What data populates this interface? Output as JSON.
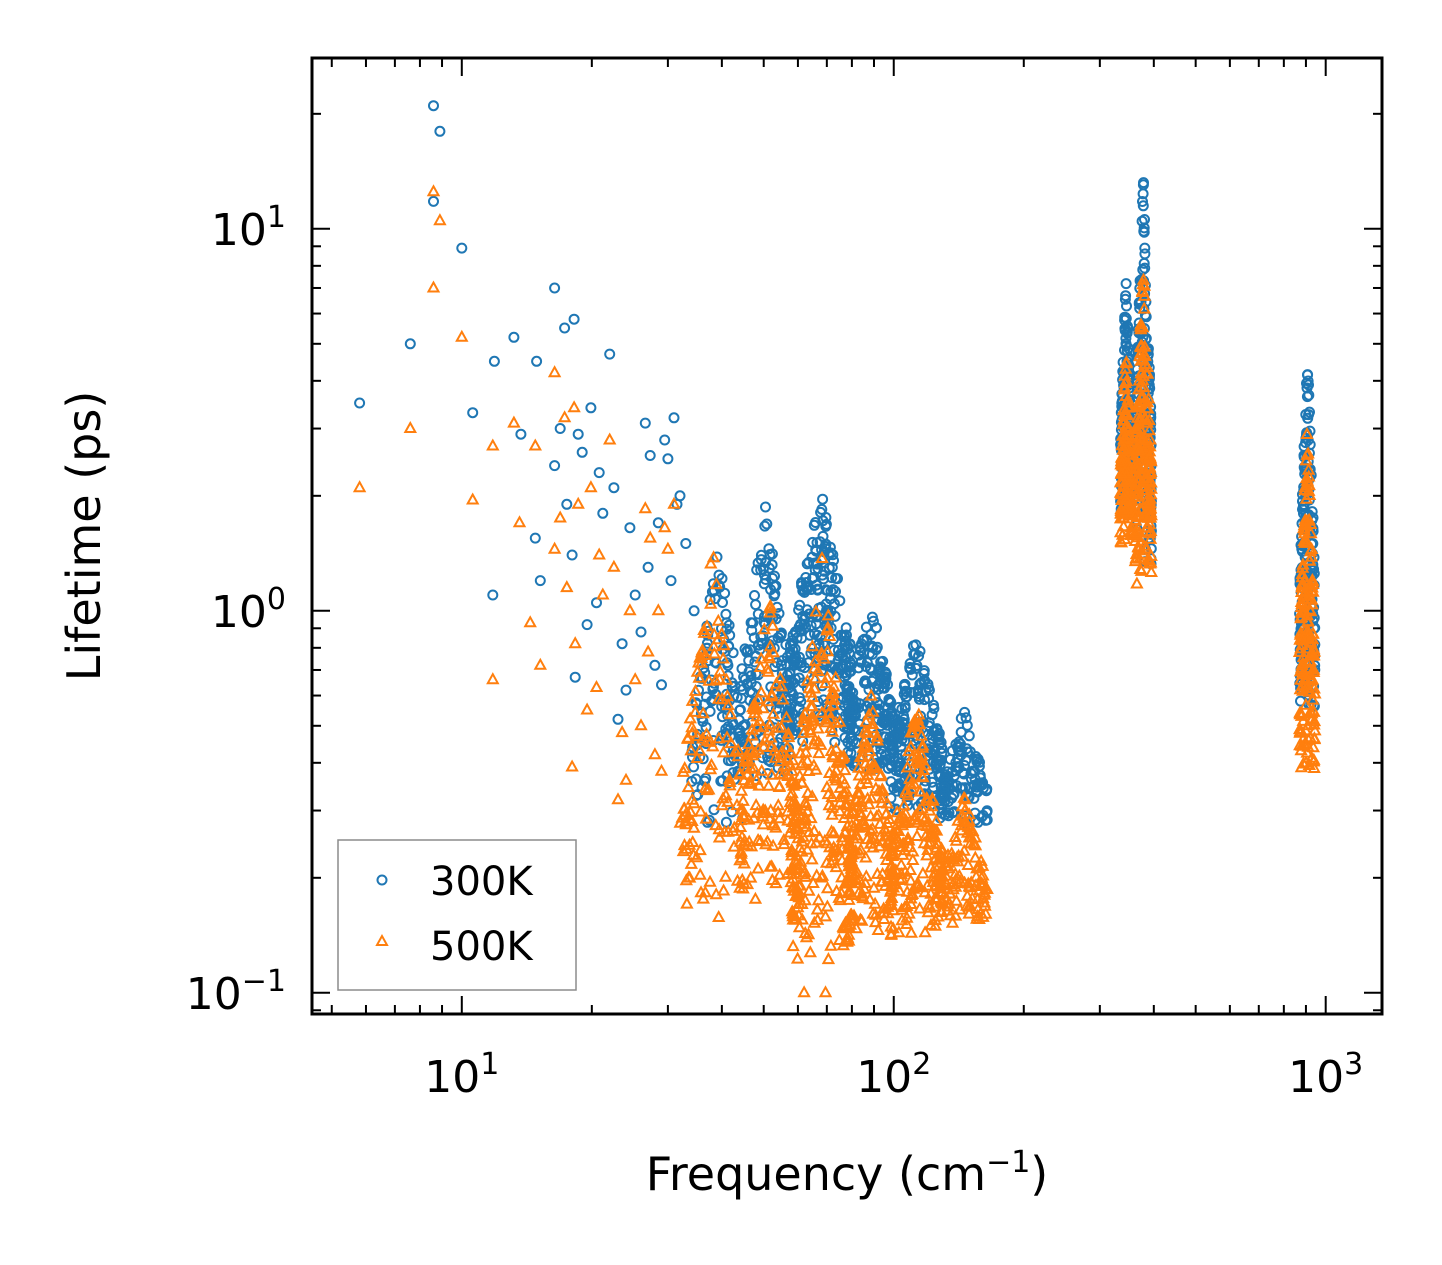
{
  "chart_data": {
    "type": "scatter",
    "title": "",
    "xlabel": "Frequency (cm",
    "xlabel_sup": "−1",
    "xlabel_close": ")",
    "ylabel": "Lifetime (ps)",
    "xscale": "log",
    "yscale": "log",
    "xlim": [
      4.5,
      1350
    ],
    "ylim": [
      0.088,
      28
    ],
    "x_ticks": [
      {
        "value": 10,
        "base": "10",
        "exp": "1"
      },
      {
        "value": 100,
        "base": "10",
        "exp": "2"
      },
      {
        "value": 1000,
        "base": "10",
        "exp": "3"
      }
    ],
    "y_ticks": [
      {
        "value": 0.1,
        "base": "10",
        "exp": "−1"
      },
      {
        "value": 1,
        "base": "10",
        "exp": "0"
      },
      {
        "value": 10,
        "base": "10",
        "exp": "1"
      }
    ],
    "legend_position": "bottom-left",
    "series": [
      {
        "name": "300K",
        "marker": "circle",
        "color": "#1f77b4",
        "points": [
          [
            5.8,
            3.5
          ],
          [
            7.6,
            5.0
          ],
          [
            8.6,
            21.0
          ],
          [
            8.6,
            11.8
          ],
          [
            8.9,
            18.0
          ],
          [
            10.0,
            8.9
          ],
          [
            10.6,
            3.3
          ],
          [
            11.8,
            1.1
          ],
          [
            11.9,
            4.5
          ],
          [
            13.2,
            5.2
          ],
          [
            13.7,
            2.9
          ],
          [
            14.8,
            1.55
          ],
          [
            14.9,
            4.5
          ],
          [
            15.2,
            1.2
          ],
          [
            16.4,
            7.0
          ],
          [
            16.4,
            2.4
          ],
          [
            16.9,
            3.0
          ],
          [
            17.3,
            5.5
          ],
          [
            17.5,
            1.9
          ],
          [
            18.0,
            1.4
          ],
          [
            18.2,
            5.8
          ],
          [
            18.3,
            0.67
          ],
          [
            18.6,
            2.9
          ],
          [
            19.0,
            2.6
          ],
          [
            19.5,
            0.92
          ],
          [
            19.9,
            3.4
          ],
          [
            20.5,
            1.05
          ],
          [
            20.8,
            2.3
          ],
          [
            21.2,
            1.8
          ],
          [
            22.0,
            4.7
          ],
          [
            22.5,
            2.1
          ],
          [
            23.0,
            0.52
          ],
          [
            23.5,
            0.82
          ],
          [
            24.0,
            0.62
          ],
          [
            24.5,
            1.65
          ],
          [
            25.2,
            1.1
          ],
          [
            26.0,
            0.88
          ],
          [
            26.6,
            3.1
          ],
          [
            27.0,
            1.3
          ],
          [
            27.3,
            2.55
          ],
          [
            28.0,
            0.72
          ],
          [
            28.5,
            1.7
          ],
          [
            29.0,
            0.64
          ],
          [
            29.5,
            2.8
          ],
          [
            30.0,
            2.5
          ],
          [
            30.5,
            1.2
          ],
          [
            31.0,
            3.2
          ],
          [
            31.5,
            1.9
          ],
          [
            32.0,
            2.0
          ],
          [
            33.0,
            1.5
          ],
          [
            34.5,
            1.0
          ]
        ],
        "clusters": [
          {
            "x_min": 34,
            "x_max": 45,
            "y_min": 0.27,
            "y_max": 1.5,
            "n": 130
          },
          {
            "x_min": 44,
            "x_max": 58,
            "y_min": 0.36,
            "y_max": 1.9,
            "n": 170
          },
          {
            "x_min": 57,
            "x_max": 80,
            "y_min": 0.45,
            "y_max": 2.2,
            "n": 260
          },
          {
            "x_min": 78,
            "x_max": 100,
            "y_min": 0.38,
            "y_max": 1.1,
            "n": 170
          },
          {
            "x_min": 98,
            "x_max": 130,
            "y_min": 0.3,
            "y_max": 0.9,
            "n": 200
          },
          {
            "x_min": 128,
            "x_max": 165,
            "y_min": 0.27,
            "y_max": 0.55,
            "n": 120
          },
          {
            "x_min": 335,
            "x_max": 355,
            "y_min": 1.8,
            "y_max": 7.5,
            "n": 140
          },
          {
            "x_min": 362,
            "x_max": 395,
            "y_min": 1.3,
            "y_max": 14.0,
            "n": 200
          },
          {
            "x_min": 870,
            "x_max": 945,
            "y_min": 0.55,
            "y_max": 5.0,
            "n": 180
          }
        ]
      },
      {
        "name": "500K",
        "marker": "triangle",
        "color": "#ff7f0e",
        "points": [
          [
            5.8,
            2.1
          ],
          [
            7.6,
            3.0
          ],
          [
            8.6,
            12.5
          ],
          [
            8.6,
            7.0
          ],
          [
            8.9,
            10.5
          ],
          [
            10.0,
            5.2
          ],
          [
            10.6,
            1.95
          ],
          [
            11.8,
            0.66
          ],
          [
            11.8,
            2.7
          ],
          [
            13.2,
            3.1
          ],
          [
            13.6,
            1.7
          ],
          [
            14.4,
            0.93
          ],
          [
            14.8,
            2.7
          ],
          [
            15.2,
            0.72
          ],
          [
            16.4,
            4.2
          ],
          [
            16.4,
            1.45
          ],
          [
            16.9,
            1.75
          ],
          [
            17.3,
            3.2
          ],
          [
            17.5,
            1.15
          ],
          [
            18.0,
            0.39
          ],
          [
            18.2,
            3.4
          ],
          [
            18.3,
            0.82
          ],
          [
            18.6,
            1.9
          ],
          [
            19.5,
            0.55
          ],
          [
            19.9,
            2.1
          ],
          [
            20.5,
            0.63
          ],
          [
            20.8,
            1.4
          ],
          [
            21.2,
            1.1
          ],
          [
            22.0,
            2.8
          ],
          [
            22.5,
            1.3
          ],
          [
            23.0,
            0.32
          ],
          [
            23.5,
            0.48
          ],
          [
            24.0,
            0.36
          ],
          [
            24.5,
            1.0
          ],
          [
            25.2,
            0.66
          ],
          [
            26.0,
            0.5
          ],
          [
            26.6,
            1.85
          ],
          [
            27.0,
            0.78
          ],
          [
            27.3,
            1.55
          ],
          [
            28.0,
            0.42
          ],
          [
            28.5,
            1.0
          ],
          [
            29.0,
            0.38
          ],
          [
            29.5,
            1.65
          ],
          [
            30.0,
            1.45
          ],
          [
            31.0,
            1.9
          ],
          [
            62.0,
            0.1
          ],
          [
            69.5,
            0.1
          ]
        ],
        "clusters": [
          {
            "x_min": 32,
            "x_max": 45,
            "y_min": 0.15,
            "y_max": 1.5,
            "n": 130
          },
          {
            "x_min": 44,
            "x_max": 60,
            "y_min": 0.17,
            "y_max": 1.1,
            "n": 170
          },
          {
            "x_min": 58,
            "x_max": 80,
            "y_min": 0.12,
            "y_max": 1.4,
            "n": 260
          },
          {
            "x_min": 78,
            "x_max": 100,
            "y_min": 0.14,
            "y_max": 0.65,
            "n": 170
          },
          {
            "x_min": 98,
            "x_max": 130,
            "y_min": 0.14,
            "y_max": 0.58,
            "n": 200
          },
          {
            "x_min": 128,
            "x_max": 165,
            "y_min": 0.15,
            "y_max": 0.33,
            "n": 120
          },
          {
            "x_min": 335,
            "x_max": 355,
            "y_min": 1.5,
            "y_max": 4.8,
            "n": 140
          },
          {
            "x_min": 362,
            "x_max": 395,
            "y_min": 1.15,
            "y_max": 8.5,
            "n": 200
          },
          {
            "x_min": 870,
            "x_max": 945,
            "y_min": 0.37,
            "y_max": 3.2,
            "n": 180
          }
        ]
      }
    ]
  }
}
